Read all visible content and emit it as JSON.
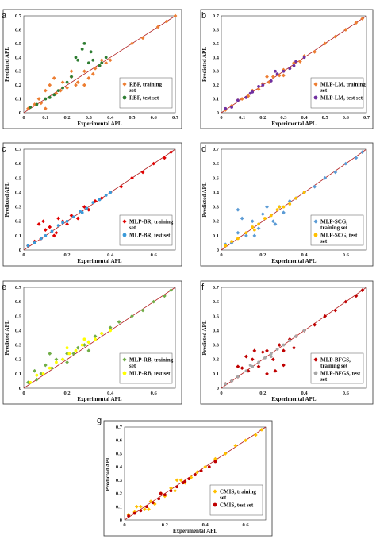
{
  "chart_data": [
    {
      "panel": "a",
      "type": "scatter",
      "xlabel": "Experimental APL",
      "ylabel": "Predicted APL",
      "xlim": [
        0,
        0.7
      ],
      "ylim": [
        0,
        0.7
      ],
      "xticks": [
        "0",
        "0.1",
        "0.2",
        "0.3",
        "0.4",
        "0.5",
        "0.6",
        "0.7"
      ],
      "yticks": [
        "0",
        "0.1",
        "0.2",
        "0.3",
        "0.4",
        "0.5",
        "0.6",
        "0.7"
      ],
      "diagonal_color": "#b22222",
      "legend_position": "bottom-right",
      "series": [
        {
          "name": "RBF, training set",
          "color": "#ed7d31",
          "marker": "diamond",
          "x": [
            0.02,
            0.05,
            0.08,
            0.1,
            0.12,
            0.15,
            0.18,
            0.2,
            0.22,
            0.25,
            0.28,
            0.3,
            0.33,
            0.35,
            0.38,
            0.1,
            0.14,
            0.22,
            0.28,
            0.07,
            0.17,
            0.24,
            0.32,
            0.36,
            0.4,
            0.5,
            0.55,
            0.62,
            0.66,
            0.7
          ],
          "y": [
            0.03,
            0.06,
            0.07,
            0.16,
            0.2,
            0.14,
            0.22,
            0.18,
            0.26,
            0.22,
            0.3,
            0.25,
            0.32,
            0.34,
            0.36,
            0.03,
            0.25,
            0.3,
            0.2,
            0.1,
            0.16,
            0.2,
            0.28,
            0.38,
            0.38,
            0.5,
            0.54,
            0.62,
            0.66,
            0.7
          ]
        },
        {
          "name": "RBF, test set",
          "color": "#2e7d32",
          "marker": "circle",
          "x": [
            0.03,
            0.06,
            0.1,
            0.14,
            0.18,
            0.2,
            0.22,
            0.25,
            0.27,
            0.3,
            0.32,
            0.35,
            0.38,
            0.24,
            0.28,
            0.31,
            0.16,
            0.12,
            0.36
          ],
          "y": [
            0.04,
            0.06,
            0.1,
            0.13,
            0.18,
            0.22,
            0.26,
            0.38,
            0.46,
            0.36,
            0.38,
            0.34,
            0.4,
            0.4,
            0.5,
            0.44,
            0.16,
            0.11,
            0.36
          ]
        }
      ]
    },
    {
      "panel": "b",
      "type": "scatter",
      "xlabel": "Experimental APL",
      "ylabel": "Predicted APL",
      "xlim": [
        0,
        0.7
      ],
      "ylim": [
        0,
        0.7
      ],
      "xticks": [
        "0",
        "0.1",
        "0.2",
        "0.3",
        "0.4",
        "0.5",
        "0.6",
        "0.7"
      ],
      "yticks": [
        "0",
        "0.1",
        "0.2",
        "0.3",
        "0.4",
        "0.5",
        "0.6",
        "0.7"
      ],
      "diagonal_color": "#b22222",
      "legend_position": "bottom-right",
      "series": [
        {
          "name": "MLP-LM, training set",
          "color": "#ed7d31",
          "marker": "diamond",
          "x": [
            0.02,
            0.05,
            0.08,
            0.1,
            0.13,
            0.15,
            0.18,
            0.2,
            0.23,
            0.25,
            0.28,
            0.3,
            0.33,
            0.35,
            0.38,
            0.4,
            0.45,
            0.5,
            0.55,
            0.6,
            0.65,
            0.68,
            0.22,
            0.3
          ],
          "y": [
            0.02,
            0.05,
            0.09,
            0.1,
            0.12,
            0.16,
            0.17,
            0.21,
            0.22,
            0.26,
            0.27,
            0.31,
            0.32,
            0.36,
            0.37,
            0.41,
            0.44,
            0.5,
            0.55,
            0.6,
            0.65,
            0.68,
            0.26,
            0.27
          ]
        },
        {
          "name": "MLP-LM, test set",
          "color": "#7030a0",
          "marker": "circle",
          "x": [
            0.02,
            0.05,
            0.08,
            0.12,
            0.15,
            0.18,
            0.2,
            0.24,
            0.27,
            0.3,
            0.33,
            0.36,
            0.4,
            0.14,
            0.26,
            0.35
          ],
          "y": [
            0.03,
            0.04,
            0.09,
            0.11,
            0.15,
            0.19,
            0.2,
            0.23,
            0.28,
            0.3,
            0.32,
            0.37,
            0.4,
            0.14,
            0.3,
            0.34
          ]
        }
      ]
    },
    {
      "panel": "c",
      "type": "scatter",
      "xlabel": "Experimental APL",
      "ylabel": "Predicted APL",
      "xlim": [
        0,
        0.7
      ],
      "ylim": [
        0,
        0.7
      ],
      "xticks": [
        "0",
        "",
        "0.2",
        "",
        "0.4",
        "",
        "0.6",
        ""
      ],
      "yticks": [
        "0",
        "0.1",
        "0.2",
        "0.3",
        "0.4",
        "0.5",
        "0.6",
        "0.7"
      ],
      "diagonal_color": "#b22222",
      "legend_position": "bottom-right",
      "series": [
        {
          "name": "MLP-BR, training set",
          "color": "#e00000",
          "marker": "diamond",
          "x": [
            0.02,
            0.05,
            0.08,
            0.1,
            0.12,
            0.15,
            0.18,
            0.2,
            0.22,
            0.25,
            0.28,
            0.3,
            0.33,
            0.36,
            0.4,
            0.45,
            0.5,
            0.55,
            0.6,
            0.65,
            0.68,
            0.07,
            0.09,
            0.14,
            0.16
          ],
          "y": [
            0.03,
            0.06,
            0.08,
            0.14,
            0.16,
            0.12,
            0.2,
            0.18,
            0.24,
            0.22,
            0.3,
            0.28,
            0.34,
            0.36,
            0.4,
            0.44,
            0.5,
            0.54,
            0.6,
            0.64,
            0.68,
            0.18,
            0.2,
            0.1,
            0.22
          ]
        },
        {
          "name": "MLP-BR, test set",
          "color": "#3a9ad9",
          "marker": "circle",
          "x": [
            0.02,
            0.05,
            0.08,
            0.1,
            0.13,
            0.16,
            0.2,
            0.23,
            0.26,
            0.29,
            0.32,
            0.35,
            0.38,
            0.4,
            0.18,
            0.27
          ],
          "y": [
            0.03,
            0.05,
            0.08,
            0.1,
            0.13,
            0.17,
            0.2,
            0.23,
            0.27,
            0.29,
            0.33,
            0.35,
            0.38,
            0.4,
            0.19,
            0.26
          ]
        }
      ]
    },
    {
      "panel": "d",
      "type": "scatter",
      "xlabel": "Experimental APL",
      "ylabel": "Predicted APL",
      "xlim": [
        0,
        0.7
      ],
      "ylim": [
        0,
        0.7
      ],
      "xticks": [
        "0",
        "",
        "0.2",
        "",
        "0.4",
        "",
        "0.6",
        ""
      ],
      "yticks": [
        "0",
        "0.1",
        "0.2",
        "0.3",
        "0.4",
        "0.5",
        "0.6",
        "0.7"
      ],
      "diagonal_color": "#b22222",
      "legend_position": "bottom-right",
      "series": [
        {
          "name": "MLP-SCG, training set",
          "color": "#5b9bd5",
          "marker": "diamond",
          "x": [
            0.02,
            0.05,
            0.08,
            0.1,
            0.12,
            0.15,
            0.18,
            0.2,
            0.22,
            0.25,
            0.28,
            0.3,
            0.33,
            0.36,
            0.4,
            0.45,
            0.5,
            0.55,
            0.6,
            0.65,
            0.68,
            0.08,
            0.16,
            0.26
          ],
          "y": [
            0.04,
            0.05,
            0.12,
            0.22,
            0.1,
            0.2,
            0.15,
            0.25,
            0.3,
            0.2,
            0.3,
            0.26,
            0.34,
            0.36,
            0.4,
            0.44,
            0.5,
            0.54,
            0.6,
            0.64,
            0.68,
            0.28,
            0.1,
            0.18
          ]
        },
        {
          "name": "MLP-SCG, test set",
          "color": "#ffc000",
          "marker": "circle",
          "x": [
            0.02,
            0.05,
            0.08,
            0.12,
            0.15,
            0.18,
            0.21,
            0.24,
            0.27,
            0.3,
            0.33,
            0.36,
            0.4,
            0.16,
            0.28
          ],
          "y": [
            0.03,
            0.06,
            0.08,
            0.12,
            0.16,
            0.18,
            0.22,
            0.24,
            0.28,
            0.3,
            0.32,
            0.36,
            0.4,
            0.14,
            0.3
          ]
        }
      ]
    },
    {
      "panel": "e",
      "type": "scatter",
      "xlabel": "Experimental APL",
      "ylabel": "Predicted APL",
      "xlim": [
        0,
        0.7
      ],
      "ylim": [
        0,
        0.7
      ],
      "xticks": [
        "0",
        "",
        "0.2",
        "",
        "0.4",
        "",
        "0.6",
        ""
      ],
      "yticks": [
        "0",
        "0.1",
        "0.2",
        "0.3",
        "0.4",
        "0.5",
        "0.6",
        "0.7"
      ],
      "diagonal_color": "#b22222",
      "legend_position": "bottom-right",
      "series": [
        {
          "name": "MLP-RB, training set",
          "color": "#70ad47",
          "marker": "diamond",
          "x": [
            0.02,
            0.05,
            0.08,
            0.1,
            0.13,
            0.15,
            0.18,
            0.2,
            0.23,
            0.25,
            0.28,
            0.3,
            0.33,
            0.36,
            0.4,
            0.44,
            0.5,
            0.55,
            0.6,
            0.65,
            0.68,
            0.06,
            0.12,
            0.2,
            0.3
          ],
          "y": [
            0.04,
            0.12,
            0.1,
            0.16,
            0.14,
            0.2,
            0.2,
            0.24,
            0.24,
            0.28,
            0.3,
            0.32,
            0.36,
            0.38,
            0.42,
            0.46,
            0.5,
            0.54,
            0.6,
            0.64,
            0.68,
            0.06,
            0.24,
            0.18,
            0.26
          ]
        },
        {
          "name": "MLP-RB, test set",
          "color": "#ffff00",
          "marker": "circle",
          "x": [
            0.03,
            0.06,
            0.09,
            0.12,
            0.15,
            0.18,
            0.21,
            0.24,
            0.27,
            0.3,
            0.33,
            0.36,
            0.4,
            0.2,
            0.28
          ],
          "y": [
            0.04,
            0.09,
            0.1,
            0.14,
            0.18,
            0.2,
            0.24,
            0.26,
            0.3,
            0.32,
            0.34,
            0.38,
            0.4,
            0.28,
            0.34
          ]
        }
      ]
    },
    {
      "panel": "f",
      "type": "scatter",
      "xlabel": "Experimental APL",
      "ylabel": "Predicted APL",
      "xlim": [
        0,
        0.7
      ],
      "ylim": [
        0,
        0.7
      ],
      "xticks": [
        "0",
        "",
        "0.2",
        "",
        "0.4",
        "",
        "0.6",
        ""
      ],
      "yticks": [
        "0",
        "0.1",
        "0.2",
        "0.3",
        "0.4",
        "0.5",
        "0.6",
        "0.7"
      ],
      "diagonal_color": "#b22222",
      "legend_position": "bottom-right",
      "series": [
        {
          "name": "MLP-BFGS, training set",
          "color": "#c00000",
          "marker": "diamond",
          "x": [
            0.02,
            0.05,
            0.08,
            0.1,
            0.13,
            0.15,
            0.18,
            0.2,
            0.22,
            0.25,
            0.28,
            0.3,
            0.33,
            0.36,
            0.4,
            0.45,
            0.5,
            0.55,
            0.6,
            0.65,
            0.68,
            0.08,
            0.12,
            0.22,
            0.3,
            0.16,
            0.35,
            0.26
          ],
          "y": [
            0.03,
            0.05,
            0.08,
            0.14,
            0.12,
            0.2,
            0.15,
            0.25,
            0.26,
            0.2,
            0.3,
            0.26,
            0.34,
            0.36,
            0.4,
            0.44,
            0.5,
            0.54,
            0.6,
            0.64,
            0.68,
            0.15,
            0.22,
            0.1,
            0.16,
            0.26,
            0.28,
            0.12
          ]
        },
        {
          "name": "MLP-BFGS, test set",
          "color": "#a6a6a6",
          "marker": "circle",
          "x": [
            0.02,
            0.05,
            0.08,
            0.12,
            0.15,
            0.18,
            0.21,
            0.24,
            0.27,
            0.3,
            0.33,
            0.36,
            0.4,
            0.14,
            0.24
          ],
          "y": [
            0.03,
            0.05,
            0.08,
            0.12,
            0.15,
            0.18,
            0.21,
            0.24,
            0.27,
            0.3,
            0.33,
            0.36,
            0.4,
            0.16,
            0.22
          ]
        }
      ]
    },
    {
      "panel": "g",
      "type": "scatter",
      "xlabel": "Experimental APL",
      "ylabel": "Predicted APL",
      "xlim": [
        0,
        0.7
      ],
      "ylim": [
        0,
        0.7
      ],
      "xticks": [
        "0",
        "",
        "0.2",
        "",
        "0.4",
        "",
        "0.6",
        ""
      ],
      "yticks": [
        "0",
        "0.1",
        "0.2",
        "0.3",
        "0.4",
        "0.5",
        "0.6",
        "0.7"
      ],
      "diagonal_color": "#b22222",
      "legend_position": "bottom-right",
      "series": [
        {
          "name": "CMIS, training set",
          "color": "#ffc000",
          "marker": "diamond",
          "x": [
            0.02,
            0.05,
            0.08,
            0.1,
            0.13,
            0.15,
            0.18,
            0.2,
            0.23,
            0.25,
            0.28,
            0.3,
            0.33,
            0.36,
            0.4,
            0.45,
            0.5,
            0.55,
            0.6,
            0.65,
            0.68,
            0.06,
            0.12,
            0.26
          ],
          "y": [
            0.04,
            0.06,
            0.1,
            0.08,
            0.14,
            0.12,
            0.2,
            0.18,
            0.24,
            0.22,
            0.3,
            0.28,
            0.32,
            0.36,
            0.4,
            0.46,
            0.5,
            0.56,
            0.6,
            0.64,
            0.68,
            0.1,
            0.08,
            0.3
          ]
        },
        {
          "name": "CMIS, test set",
          "color": "#c00000",
          "marker": "circle",
          "x": [
            0.02,
            0.05,
            0.08,
            0.11,
            0.14,
            0.17,
            0.2,
            0.23,
            0.26,
            0.29,
            0.32,
            0.35,
            0.38,
            0.42,
            0.45,
            0.18,
            0.3
          ],
          "y": [
            0.03,
            0.05,
            0.07,
            0.1,
            0.13,
            0.16,
            0.19,
            0.22,
            0.25,
            0.28,
            0.31,
            0.34,
            0.37,
            0.4,
            0.44,
            0.2,
            0.29
          ]
        }
      ]
    }
  ]
}
